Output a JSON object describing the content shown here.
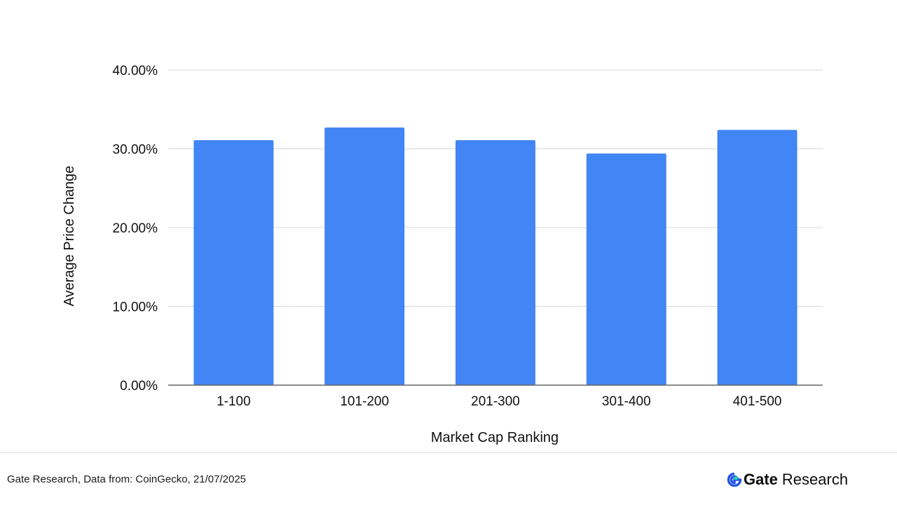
{
  "chart_data": {
    "type": "bar",
    "title": "",
    "xlabel": "Market Cap Ranking",
    "ylabel": "Average Price Change",
    "categories": [
      "1-100",
      "101-200",
      "201-300",
      "301-400",
      "401-500"
    ],
    "values": [
      31.1,
      32.7,
      31.1,
      29.4,
      32.4
    ],
    "ylim": [
      0,
      40
    ],
    "yticks": [
      0,
      10,
      20,
      30,
      40
    ],
    "ytick_labels": [
      "0.00%",
      "10.00%",
      "20.00%",
      "30.00%",
      "40.00%"
    ],
    "grid": true,
    "bar_color": "#4285f4",
    "grid_color": "#d9d9d9",
    "axis_color": "#666666"
  },
  "footer": {
    "source": "Gate Research, Data from: CoinGecko, 21/07/2025",
    "brand_name": "Gate",
    "brand_sub": "Research",
    "brand_icon": "gate-logo-icon",
    "brand_color": "#2354e6",
    "brand_accent": "#17e3a1"
  }
}
